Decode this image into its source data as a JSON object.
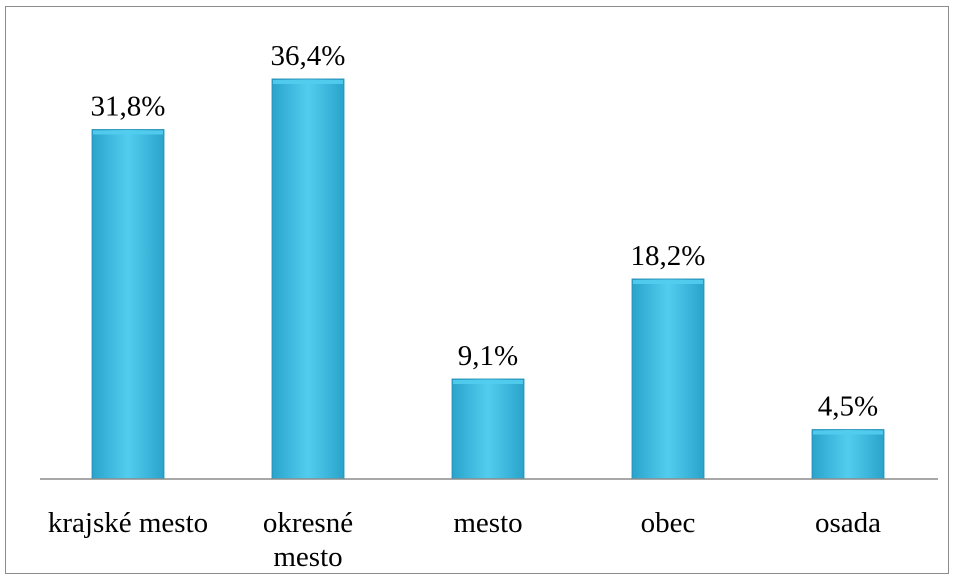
{
  "chart_data": {
    "type": "bar",
    "title": "",
    "xlabel": "",
    "ylabel": "",
    "ylim": [
      0,
      40
    ],
    "grid": false,
    "legend": "none",
    "categories": [
      [
        "krajské mesto"
      ],
      [
        "okresné",
        "mesto"
      ],
      [
        "mesto"
      ],
      [
        "obec"
      ],
      [
        "osada"
      ]
    ],
    "values": [
      31.8,
      36.4,
      9.1,
      18.2,
      4.5
    ],
    "data_labels": [
      "31,8%",
      "36,4%",
      "9,1%",
      "18,2%",
      "4,5%"
    ],
    "colors": {
      "bar_fill_top": "#52cdee",
      "bar_fill_mid": "#3fb8de",
      "bar_fill_bottom": "#2aa3cc",
      "bar_edge": "#1e8bb3",
      "axis": "#8c8c8c"
    }
  }
}
